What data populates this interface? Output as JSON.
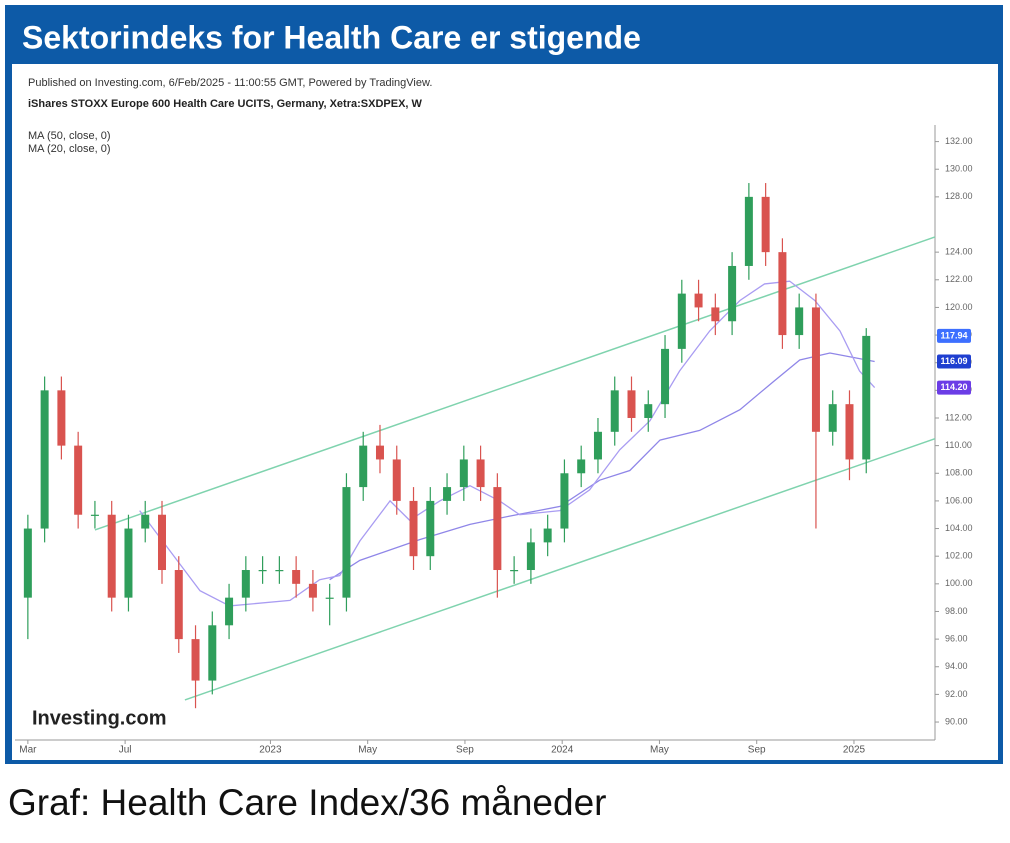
{
  "header": {
    "title": "Sektorindeks for Health Care er stigende"
  },
  "caption": "Graf: Health Care Index/36 måneder",
  "chart_data": {
    "type": "candlestick",
    "published": "Published on Investing.com, 6/Feb/2025 - 11:00:55 GMT, Powered by TradingView.",
    "title": "iShares STOXX Europe 600 Health Care UCITS, Germany, Xetra:SXDPEX, W",
    "logo": "Investing.com",
    "up_color": "#2f9e5b",
    "down_color": "#d9534f",
    "x": [
      0,
      3,
      6,
      9,
      12,
      15,
      18,
      21,
      24,
      27,
      30,
      33,
      36,
      39,
      42,
      45,
      48,
      51,
      54,
      57,
      60,
      63,
      66,
      69,
      72,
      75,
      78,
      81,
      84,
      87,
      90,
      93,
      96,
      99,
      102,
      105,
      108,
      111,
      114,
      117,
      120,
      123,
      126,
      129,
      132,
      135,
      138,
      141,
      144,
      147,
      150
    ],
    "open": [
      99,
      104,
      114,
      110,
      105,
      105,
      99,
      104,
      105,
      101,
      96,
      93,
      97,
      99,
      101,
      101,
      101,
      100,
      99,
      99,
      107,
      110,
      109,
      106,
      102,
      106,
      107,
      109,
      107,
      101,
      101,
      103,
      104,
      108,
      109,
      111,
      114,
      112,
      113,
      117,
      121,
      120,
      119,
      123,
      128,
      124,
      118,
      120,
      111,
      113,
      109
    ],
    "high": [
      105,
      115,
      115,
      111,
      106,
      106,
      105,
      106,
      106,
      102,
      97,
      98,
      100,
      102,
      102,
      102,
      102,
      101,
      100,
      108,
      111,
      111.5,
      110,
      107,
      107,
      108,
      110,
      110,
      108,
      102,
      104,
      105,
      109,
      110,
      112,
      115,
      115,
      114,
      118,
      122,
      122,
      121,
      124,
      129,
      129,
      125,
      121,
      121,
      114,
      114,
      118.5
    ],
    "low": [
      96,
      103,
      109,
      104,
      104,
      98,
      98,
      103,
      100,
      95,
      91,
      92,
      96,
      98,
      100,
      100,
      99,
      98,
      97,
      98,
      106,
      108,
      105,
      101,
      101,
      105,
      106,
      106,
      99,
      100,
      100,
      102,
      103,
      107,
      108,
      110,
      111,
      111,
      112,
      116,
      119,
      118,
      118,
      122,
      123,
      117,
      117,
      104,
      110,
      107.5,
      108
    ],
    "close": [
      104,
      114,
      110,
      105,
      105,
      99,
      104,
      105,
      101,
      96,
      93,
      97,
      99,
      101,
      101,
      101,
      100,
      99,
      99,
      107,
      110,
      109,
      106,
      102,
      106,
      107,
      109,
      107,
      101,
      101,
      103,
      104,
      108,
      109,
      111,
      114,
      112,
      113,
      117,
      121,
      120,
      119,
      123,
      128,
      124,
      118,
      120,
      111,
      113,
      109,
      117.94
    ],
    "series": [
      {
        "name": "MA (50, close, 0)",
        "color": "#8f86e8",
        "x": [
          54.0,
          59.4,
          70.1,
          79.1,
          86.2,
          95.2,
          102.3,
          107.7,
          113.1,
          120.2,
          127.4,
          132.7,
          138.1,
          143.5,
          151.5
        ],
        "values": [
          100.3,
          101.7,
          103.2,
          104.3,
          104.9,
          105.6,
          107.5,
          108.2,
          110.4,
          111.1,
          112.6,
          114.4,
          116.2,
          116.7,
          116.09
        ]
      },
      {
        "name": "MA (20, close, 0)",
        "color": "#a99cf2",
        "x": [
          20.0,
          30.8,
          36.1,
          46.9,
          52.2,
          55.8,
          59.4,
          64.8,
          68.3,
          73.7,
          79.1,
          84.4,
          88.0,
          95.2,
          100.5,
          105.9,
          111.3,
          116.6,
          122.0,
          127.4,
          131.8,
          136.3,
          140.8,
          145.3,
          148.8,
          151.5
        ],
        "values": [
          105.3,
          99.5,
          98.4,
          98.8,
          100.3,
          100.6,
          103.1,
          106,
          104.6,
          106,
          107.1,
          106,
          105,
          105.3,
          106.8,
          109.7,
          111.8,
          115.4,
          118.3,
          120.5,
          121.7,
          121.9,
          120.5,
          118.3,
          115.4,
          114.2
        ]
      }
    ],
    "trendlines": [
      {
        "color": "#7fd3ae",
        "x": [
          12,
          162.3
        ],
        "values": [
          103.9,
          125.1
        ]
      },
      {
        "color": "#7fd3ae",
        "x": [
          28.1,
          162.3
        ],
        "values": [
          91.6,
          110.5
        ]
      }
    ],
    "price_labels": [
      {
        "value": 117.94,
        "label": "117.94",
        "color": "#3d6fff"
      },
      {
        "value": 116.09,
        "label": "116.09",
        "color": "#1f3fd0"
      },
      {
        "value": 114.2,
        "label": "114.20",
        "color": "#6b3de6"
      }
    ],
    "xlim": [
      -2.3,
      162.3
    ],
    "xticks": [
      {
        "value": 0,
        "label": "Mar"
      },
      {
        "value": 17.4,
        "label": "Jul"
      },
      {
        "value": 43.4,
        "label": "2023"
      },
      {
        "value": 60.8,
        "label": "May"
      },
      {
        "value": 78.2,
        "label": "Sep"
      },
      {
        "value": 95.6,
        "label": "2024"
      },
      {
        "value": 113,
        "label": "May"
      },
      {
        "value": 130.4,
        "label": "Sep"
      },
      {
        "value": 147.8,
        "label": "2025"
      }
    ],
    "ylim": [
      88.7,
      133.2
    ],
    "yticks": [
      {
        "value": 90,
        "label": "90.00"
      },
      {
        "value": 92,
        "label": "92.00"
      },
      {
        "value": 94,
        "label": "94.00"
      },
      {
        "value": 96,
        "label": "96.00"
      },
      {
        "value": 98,
        "label": "98.00"
      },
      {
        "value": 100,
        "label": "100.00"
      },
      {
        "value": 102,
        "label": "102.00"
      },
      {
        "value": 104,
        "label": "104.00"
      },
      {
        "value": 106,
        "label": "106.00"
      },
      {
        "value": 108,
        "label": "108.00"
      },
      {
        "value": 110,
        "label": "110.00"
      },
      {
        "value": 112,
        "label": "112.00"
      },
      {
        "value": 114,
        "label": "114.00"
      },
      {
        "value": 116,
        "label": "116.00"
      },
      {
        "value": 118,
        "label": "118.00"
      },
      {
        "value": 120,
        "label": "120.00"
      },
      {
        "value": 122,
        "label": "122.00"
      },
      {
        "value": 124,
        "label": "124.00"
      },
      {
        "value": 128,
        "label": "128.00"
      },
      {
        "value": 130,
        "label": "130.00"
      },
      {
        "value": 132,
        "label": "132.00"
      }
    ]
  }
}
